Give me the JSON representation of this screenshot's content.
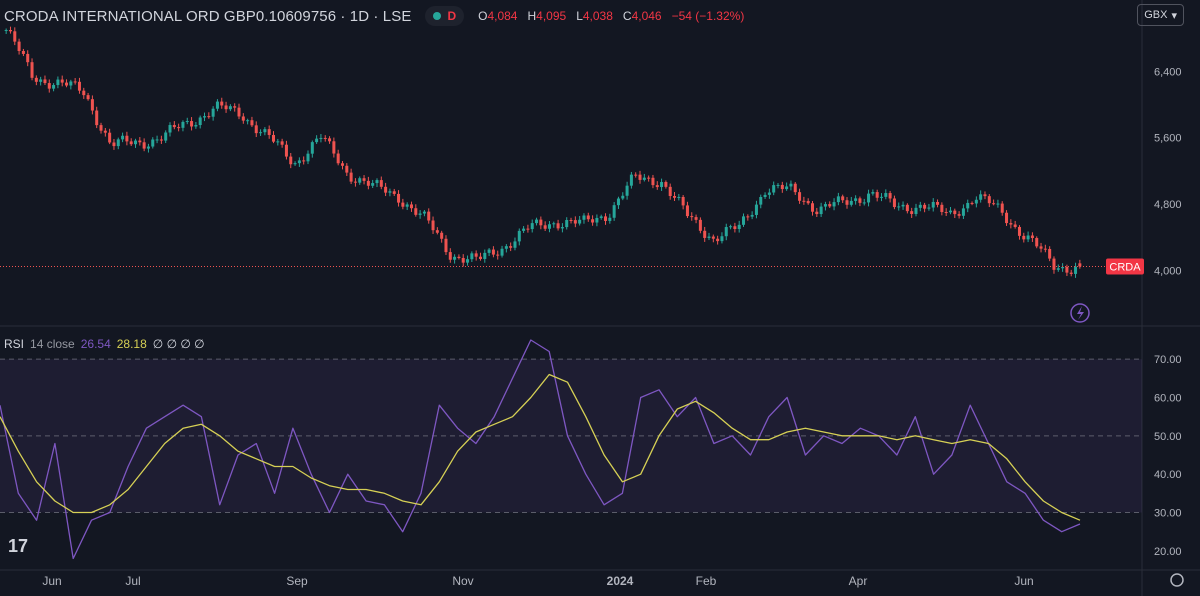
{
  "header": {
    "title": "CRODA INTERNATIONAL ORD GBP0.10609756 · 1D · LSE",
    "indicator": "D",
    "ohlc": [
      {
        "k": "O",
        "v": "4,084"
      },
      {
        "k": "H",
        "v": "4,095"
      },
      {
        "k": "L",
        "v": "4,038"
      },
      {
        "k": "C",
        "v": "4,046"
      },
      {
        "k": "",
        "v": "−54 (−1.32%)"
      }
    ],
    "currency": "GBX"
  },
  "price_axis_labels": [
    "6,400",
    "5,600",
    "4,800",
    "4,000"
  ],
  "price_tag": "CRDA",
  "rsi_legend": {
    "name": "RSI",
    "params": "14 close",
    "value": "26.54",
    "ma_value": "28.18",
    "extra": "∅ ∅ ∅ ∅"
  },
  "rsi_axis_labels": [
    "70.00",
    "60.00",
    "50.00",
    "40.00",
    "30.00",
    "20.00"
  ],
  "time_axis_labels": [
    "Jun",
    "Jul",
    "Sep",
    "Nov",
    "2024",
    "Feb",
    "Apr",
    "Jun"
  ],
  "colors": {
    "up": "#26a69a",
    "down": "#ef5350",
    "rsi": "#7e57c2",
    "rsi_ma": "#d6d055",
    "bg": "#131722",
    "grid": "#1e222d"
  },
  "chart_data": [
    {
      "type": "candlestick",
      "title": "CRODA INTERNATIONAL ORD GBP0.10609756 · 1D · LSE",
      "ylim": [
        3400,
        6900
      ],
      "x": [
        "2023-05",
        "2023-06",
        "2023-07",
        "2023-08",
        "2023-09",
        "2023-10",
        "2023-11",
        "2023-12",
        "2024-01",
        "2024-02",
        "2024-03",
        "2024-04",
        "2024-05",
        "2024-06"
      ],
      "close_path": [
        6900,
        6350,
        6250,
        6150,
        5500,
        5550,
        5600,
        5800,
        5950,
        5900,
        5600,
        5300,
        5600,
        5200,
        5000,
        4900,
        4600,
        4200,
        4100,
        4300,
        4500,
        4600,
        4550,
        4700,
        5100,
        5100,
        4650,
        4400,
        4500,
        5000,
        4950,
        4750,
        4800,
        4950,
        4750,
        4800,
        4650,
        4900,
        4700,
        4400,
        4050,
        4046
      ],
      "last": {
        "open": 4084,
        "high": 4095,
        "low": 4038,
        "close": 4046
      },
      "ylabels": [
        "6,400",
        "5,600",
        "4,800",
        "4,000"
      ]
    },
    {
      "type": "line",
      "title": "RSI 14 close",
      "ylim": [
        15,
        75
      ],
      "bands": [
        30,
        50,
        70
      ],
      "series": [
        {
          "name": "RSI",
          "values": [
            58,
            35,
            28,
            48,
            18,
            28,
            30,
            42,
            52,
            55,
            58,
            55,
            32,
            45,
            48,
            35,
            52,
            40,
            30,
            40,
            33,
            32,
            25,
            35,
            58,
            52,
            48,
            55,
            65,
            75,
            72,
            50,
            40,
            32,
            35,
            60,
            62,
            55,
            60,
            48,
            50,
            45,
            55,
            60,
            45,
            50,
            48,
            52,
            50,
            45,
            55,
            40,
            45,
            58,
            48,
            38,
            35,
            28,
            25,
            27
          ]
        },
        {
          "name": "MA",
          "values": [
            55,
            46,
            38,
            33,
            30,
            30,
            32,
            36,
            42,
            48,
            52,
            53,
            50,
            46,
            44,
            42,
            42,
            39,
            37,
            36,
            36,
            35,
            33,
            32,
            38,
            46,
            51,
            53,
            55,
            60,
            66,
            64,
            55,
            45,
            38,
            40,
            50,
            57,
            59,
            56,
            52,
            49,
            49,
            51,
            52,
            51,
            50,
            50,
            50,
            49,
            50,
            49,
            48,
            49,
            48,
            44,
            38,
            33,
            30,
            28
          ]
        }
      ],
      "ylabels": [
        "70.00",
        "60.00",
        "50.00",
        "40.00",
        "30.00",
        "20.00"
      ]
    }
  ]
}
